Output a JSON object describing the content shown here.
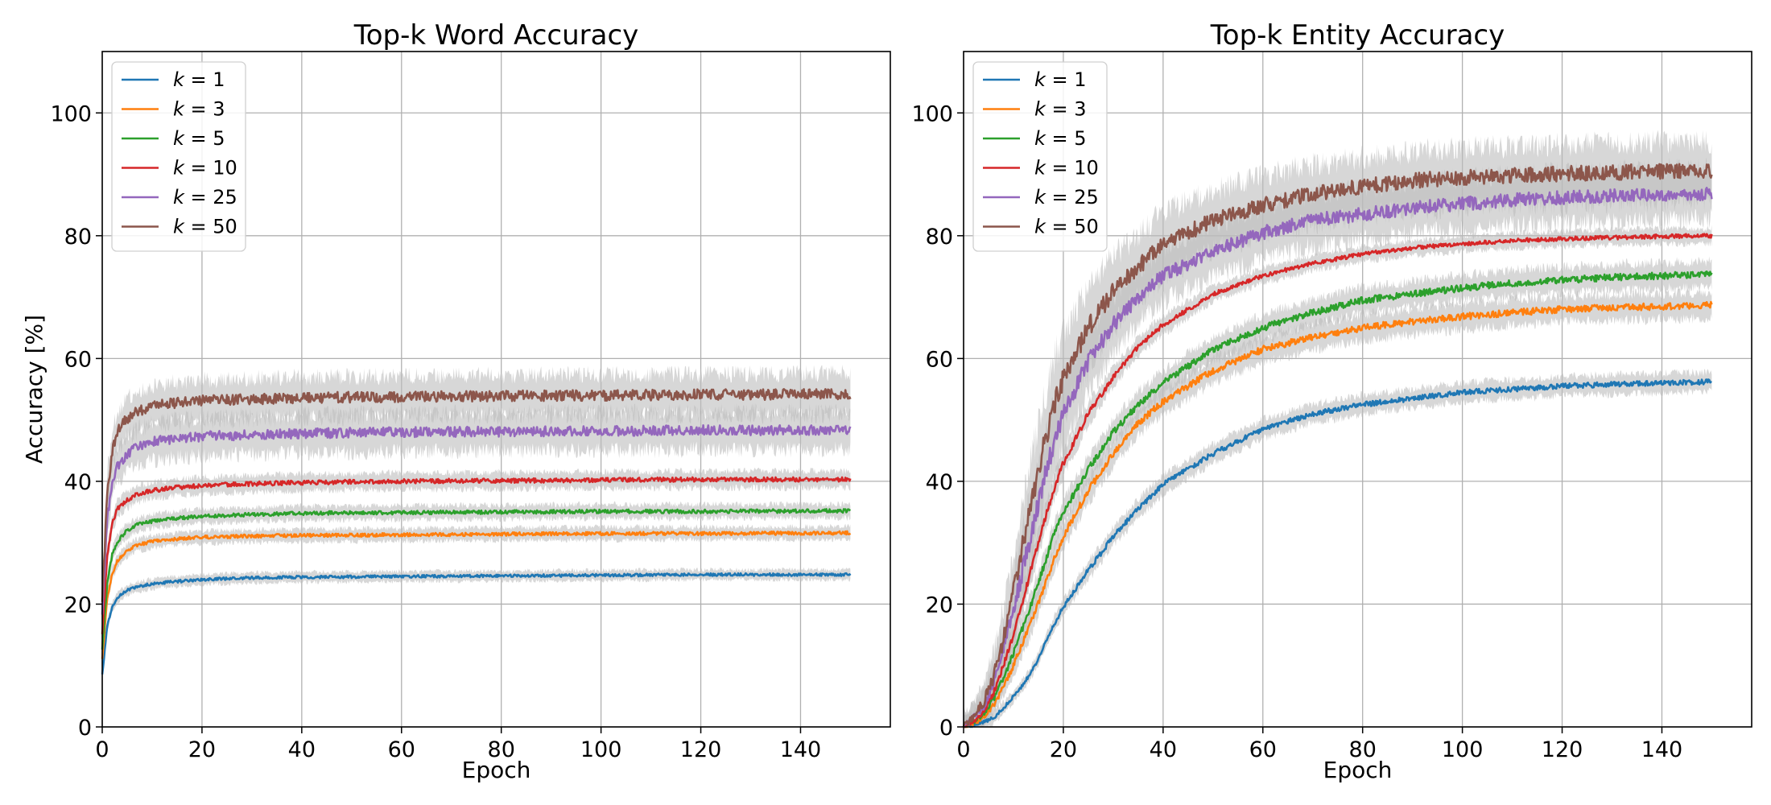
{
  "chart_data": [
    {
      "type": "line",
      "title": "Top-k Word Accuracy",
      "xlabel": "Epoch",
      "ylabel": "Accuracy [%]",
      "xlim": [
        0,
        158
      ],
      "ylim": [
        0,
        110
      ],
      "xticks": [
        0,
        20,
        40,
        60,
        80,
        100,
        120,
        140
      ],
      "yticks": [
        0,
        20,
        40,
        60,
        80,
        100
      ],
      "grid": true,
      "legend_position": "top-left",
      "shaded_band": true,
      "x": [
        0,
        1,
        2,
        3,
        5,
        7,
        10,
        15,
        20,
        30,
        40,
        60,
        80,
        100,
        120,
        150
      ],
      "series": [
        {
          "name": "k = 1",
          "legend_k": "k",
          "legend_value": "1",
          "color": "#1f77b4",
          "values": [
            8.5,
            16.5,
            19.5,
            21,
            22.3,
            22.8,
            23.3,
            23.7,
            24.0,
            24.3,
            24.4,
            24.5,
            24.6,
            24.7,
            24.8,
            24.8
          ],
          "spread": [
            0.8,
            0.8,
            0.8,
            0.8,
            0.8,
            0.8,
            0.8,
            0.8,
            0.8,
            0.8,
            0.8,
            0.8,
            0.8,
            0.8,
            0.8,
            0.8
          ]
        },
        {
          "name": "k = 3",
          "legend_k": "k",
          "legend_value": "3",
          "color": "#ff7f0e",
          "values": [
            11,
            21,
            25,
            27,
            28.8,
            29.6,
            30.2,
            30.6,
            30.9,
            31.1,
            31.2,
            31.3,
            31.4,
            31.5,
            31.5,
            31.6
          ],
          "spread": [
            1.0,
            1.0,
            1.0,
            1.0,
            1.0,
            1.0,
            1.0,
            1.0,
            1.0,
            1.0,
            1.0,
            1.0,
            1.0,
            1.0,
            1.0,
            1.0
          ]
        },
        {
          "name": "k = 5",
          "legend_k": "k",
          "legend_value": "5",
          "color": "#2ca02c",
          "values": [
            12.5,
            23.5,
            28,
            30.2,
            32,
            32.9,
            33.5,
            34.0,
            34.3,
            34.6,
            34.8,
            34.9,
            35.0,
            35.1,
            35.1,
            35.2
          ],
          "spread": [
            1.1,
            1.1,
            1.1,
            1.1,
            1.1,
            1.1,
            1.1,
            1.1,
            1.1,
            1.1,
            1.1,
            1.1,
            1.1,
            1.1,
            1.1,
            1.1
          ]
        },
        {
          "name": "k = 10",
          "legend_k": "k",
          "legend_value": "10",
          "color": "#d62728",
          "values": [
            15,
            28,
            33,
            35.5,
            37,
            37.9,
            38.5,
            39.0,
            39.3,
            39.6,
            39.8,
            40.0,
            40.1,
            40.2,
            40.3,
            40.3
          ],
          "spread": [
            1.3,
            1.3,
            1.3,
            1.3,
            1.3,
            1.3,
            1.3,
            1.3,
            1.3,
            1.3,
            1.3,
            1.3,
            1.3,
            1.3,
            1.3,
            1.3
          ]
        },
        {
          "name": "k = 25",
          "legend_k": "k",
          "legend_value": "25",
          "color": "#9467bd",
          "values": [
            18,
            34,
            40,
            42.5,
            44.5,
            45.5,
            46.5,
            47.0,
            47.3,
            47.6,
            47.8,
            48.0,
            48.1,
            48.2,
            48.3,
            48.3
          ],
          "spread": [
            3.0,
            3.0,
            3.0,
            3.0,
            3.0,
            3.0,
            3.0,
            3.0,
            3.0,
            3.0,
            3.0,
            3.0,
            3.0,
            3.0,
            3.0,
            3.0
          ]
        },
        {
          "name": "k = 50",
          "legend_k": "k",
          "legend_value": "50",
          "color": "#8c564b",
          "values": [
            20,
            38,
            45,
            48,
            50.3,
            51.3,
            52.2,
            52.8,
            53.1,
            53.4,
            53.6,
            53.8,
            53.9,
            54.0,
            54.1,
            54.2
          ],
          "spread": [
            3.2,
            3.2,
            3.2,
            3.2,
            3.2,
            3.2,
            3.2,
            3.2,
            3.2,
            3.2,
            3.2,
            3.2,
            3.2,
            3.2,
            3.2,
            3.2
          ]
        }
      ]
    },
    {
      "type": "line",
      "title": "Top-k Entity Accuracy",
      "xlabel": "Epoch",
      "ylabel": "",
      "xlim": [
        0,
        158
      ],
      "ylim": [
        0,
        110
      ],
      "xticks": [
        0,
        20,
        40,
        60,
        80,
        100,
        120,
        140
      ],
      "yticks": [
        0,
        20,
        40,
        60,
        80,
        100
      ],
      "grid": true,
      "legend_position": "top-left",
      "shaded_band": true,
      "x": [
        0,
        2,
        4,
        6,
        8,
        10,
        12,
        14,
        16,
        18,
        20,
        25,
        30,
        35,
        40,
        50,
        60,
        70,
        80,
        90,
        100,
        110,
        120,
        130,
        140,
        150
      ],
      "series": [
        {
          "name": "k = 1",
          "legend_k": "k",
          "legend_value": "1",
          "color": "#1f77b4",
          "values": [
            0,
            0.3,
            0.8,
            1.5,
            3,
            5,
            7,
            9.5,
            13,
            16.5,
            19.5,
            25.5,
            31,
            35.5,
            39.5,
            44.5,
            48.5,
            51,
            52.5,
            53.5,
            54.5,
            55,
            55.5,
            55.8,
            56,
            56.2
          ],
          "spread": [
            1.0,
            1.0,
            1.0,
            1.0,
            1.0,
            1.0,
            1.0,
            1.0,
            1.0,
            1.2,
            1.2,
            1.5,
            1.5,
            1.5,
            1.5,
            1.5,
            1.5,
            1.5,
            1.5,
            1.5,
            1.5,
            1.5,
            1.5,
            1.5,
            1.5,
            1.5
          ]
        },
        {
          "name": "k = 3",
          "legend_k": "k",
          "legend_value": "3",
          "color": "#ff7f0e",
          "values": [
            0,
            0.5,
            1.5,
            3.5,
            6.5,
            10,
            14,
            18,
            22.5,
            27,
            31,
            38.5,
            44.5,
            49.5,
            53,
            58,
            61.5,
            63.5,
            65,
            66,
            66.8,
            67.5,
            68,
            68.3,
            68.5,
            68.7
          ],
          "spread": [
            1.2,
            1.2,
            1.2,
            1.5,
            1.5,
            1.8,
            1.8,
            2.0,
            2.0,
            2.0,
            2.0,
            2.0,
            2.0,
            2.0,
            2.0,
            2.0,
            2.0,
            2.0,
            2.0,
            2.0,
            2.0,
            2.0,
            2.0,
            2.0,
            2.0,
            2.0
          ]
        },
        {
          "name": "k = 5",
          "legend_k": "k",
          "legend_value": "5",
          "color": "#2ca02c",
          "values": [
            0,
            0.8,
            2,
            4.5,
            8,
            12,
            16.5,
            21,
            26,
            31,
            35,
            42,
            48,
            52.5,
            56,
            61.5,
            65,
            67.5,
            69.5,
            70.5,
            71.5,
            72.3,
            72.8,
            73.2,
            73.5,
            73.7
          ],
          "spread": [
            1.3,
            1.3,
            1.3,
            1.6,
            1.6,
            2.0,
            2.0,
            2.0,
            2.0,
            2.0,
            2.0,
            2.0,
            2.0,
            2.0,
            2.0,
            2.0,
            2.0,
            2.0,
            2.0,
            2.0,
            2.0,
            2.0,
            2.0,
            2.0,
            2.0,
            2.0
          ]
        },
        {
          "name": "k = 10",
          "legend_k": "k",
          "legend_value": "10",
          "color": "#d62728",
          "values": [
            0,
            1,
            2.5,
            5.5,
            10,
            15,
            21,
            27,
            33,
            38.5,
            43,
            51,
            57,
            62,
            65.5,
            70.5,
            73.5,
            75.5,
            77,
            78,
            78.7,
            79.2,
            79.5,
            79.7,
            79.9,
            80
          ],
          "spread": [
            1.5,
            1.5,
            1.5,
            1.8,
            1.8,
            2.0,
            2.0,
            2.0,
            2.0,
            2.0,
            2.0,
            1.8,
            1.5,
            1.5,
            1.5,
            1.2,
            1.2,
            1.2,
            1.2,
            1.2,
            1.2,
            1.2,
            1.2,
            1.2,
            1.2,
            1.2
          ]
        },
        {
          "name": "k = 25",
          "legend_k": "k",
          "legend_value": "25",
          "color": "#9467bd",
          "values": [
            0,
            1.5,
            3.5,
            7,
            12.5,
            19,
            26,
            33,
            40,
            46,
            51,
            59.5,
            65.5,
            70,
            73.5,
            77.5,
            80.5,
            82.5,
            83.5,
            84.5,
            85.2,
            85.8,
            86.2,
            86.5,
            86.7,
            86.9
          ],
          "spread": [
            2.0,
            2.0,
            2.5,
            3.0,
            4.0,
            5.0,
            6.0,
            6.0,
            6.0,
            6.0,
            5.5,
            5.0,
            4.5,
            4.0,
            4.0,
            4.0,
            4.0,
            4.0,
            4.0,
            4.0,
            4.0,
            4.0,
            4.0,
            4.0,
            4.0,
            4.0
          ]
        },
        {
          "name": "k = 50",
          "legend_k": "k",
          "legend_value": "50",
          "color": "#8c564b",
          "values": [
            0,
            1.8,
            4,
            8,
            14.5,
            22,
            30,
            38,
            45.5,
            52,
            57,
            65,
            71,
            75,
            78.5,
            82.5,
            85,
            86.8,
            88,
            89,
            89.5,
            89.8,
            90.1,
            90.3,
            90.5,
            90.6
          ],
          "spread": [
            2.0,
            2.0,
            3.0,
            4.0,
            5.0,
            6.0,
            7.0,
            7.0,
            7.0,
            7.0,
            6.5,
            6.0,
            5.5,
            5.0,
            5.0,
            4.5,
            4.5,
            4.5,
            4.5,
            4.5,
            4.5,
            4.5,
            4.5,
            4.5,
            4.5,
            4.5
          ]
        }
      ]
    }
  ]
}
